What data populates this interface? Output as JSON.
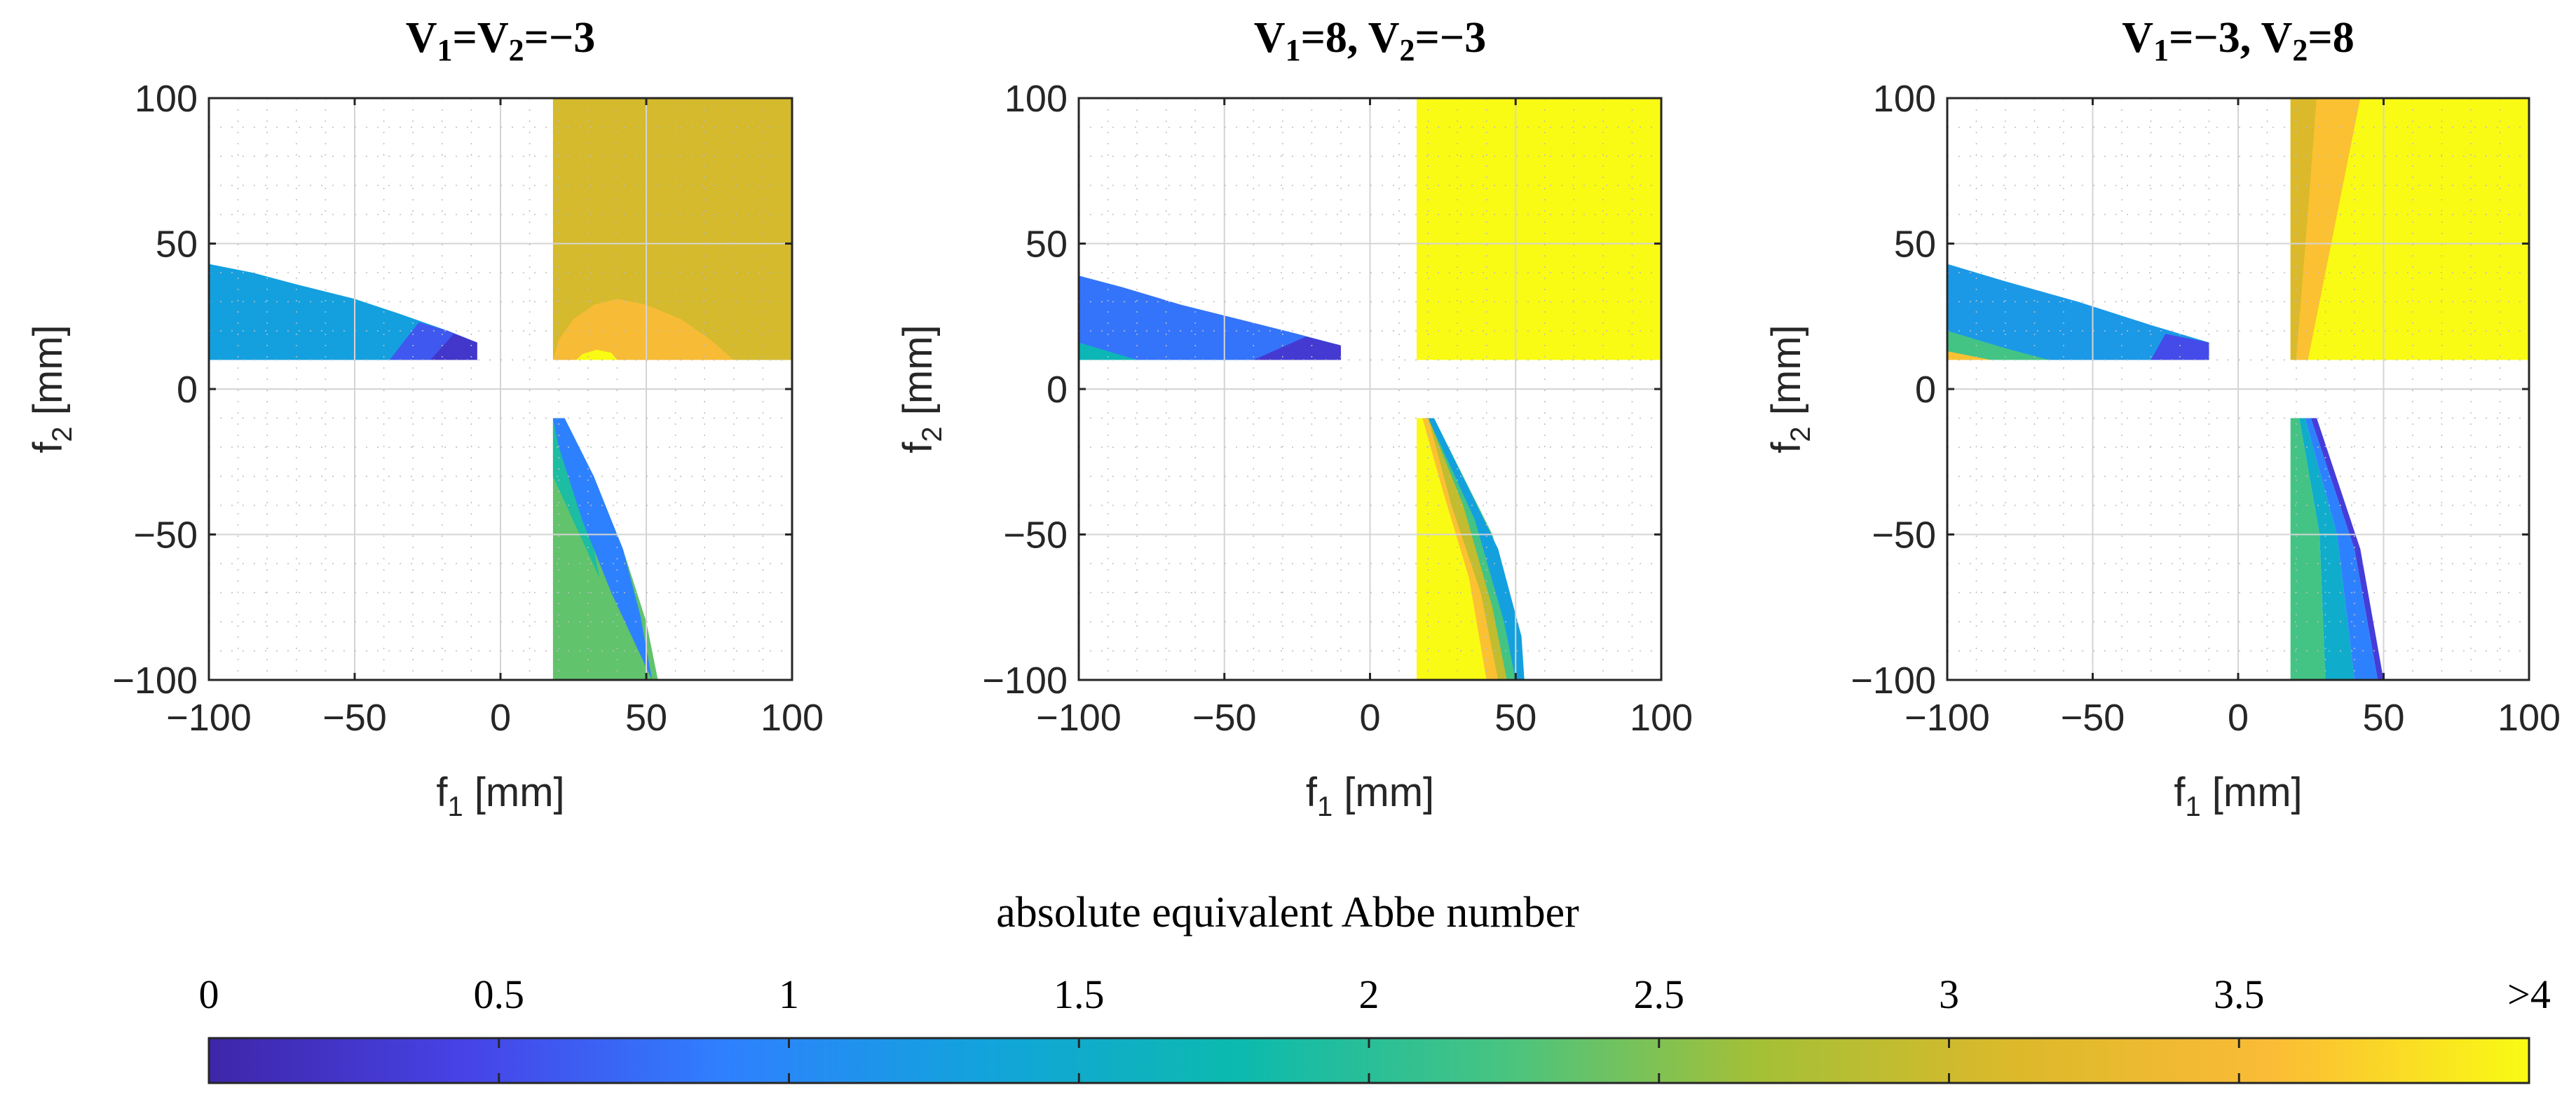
{
  "chart_data": {
    "type": "heatmap",
    "panels": [
      {
        "title_parts": [
          {
            "text": "V",
            "sub": false
          },
          {
            "text": "1",
            "sub": true
          },
          {
            "text": "=V",
            "sub": false
          },
          {
            "text": "2",
            "sub": true
          },
          {
            "text": "=−3",
            "sub": false
          }
        ],
        "regions": [
          {
            "value": 3.05,
            "points": [
              [
                18,
                10
              ],
              [
                100,
                10
              ],
              [
                100,
                100
              ],
              [
                18,
                100
              ]
            ]
          },
          {
            "value": 3.5,
            "points": [
              [
                18,
                10
              ],
              [
                80,
                10
              ],
              [
                72,
                17
              ],
              [
                62,
                24
              ],
              [
                50,
                29
              ],
              [
                40,
                31
              ],
              [
                32,
                29
              ],
              [
                25,
                24
              ],
              [
                20,
                17
              ]
            ]
          },
          {
            "value": 4.0,
            "points": [
              [
                26,
                10
              ],
              [
                40,
                10
              ],
              [
                38,
                12.5
              ],
              [
                33,
                13.5
              ],
              [
                28,
                12
              ]
            ]
          },
          {
            "value": 1.3,
            "points": [
              [
                -100,
                10
              ],
              [
                -8,
                10
              ],
              [
                -8,
                16
              ],
              [
                -18,
                20
              ],
              [
                -35,
                26
              ],
              [
                -50,
                31
              ],
              [
                -70,
                36
              ],
              [
                -85,
                40
              ],
              [
                -100,
                43
              ]
            ]
          },
          {
            "value": 0.6,
            "points": [
              [
                -38,
                10
              ],
              [
                -8,
                10
              ],
              [
                -8,
                16
              ],
              [
                -18,
                20
              ],
              [
                -28,
                23
              ]
            ]
          },
          {
            "value": 0.25,
            "points": [
              [
                -24,
                10
              ],
              [
                -8,
                10
              ],
              [
                -8,
                16
              ],
              [
                -16,
                19
              ]
            ]
          },
          {
            "value": 2.35,
            "points": [
              [
                18,
                -10
              ],
              [
                22,
                -10
              ],
              [
                32,
                -30
              ],
              [
                42,
                -55
              ],
              [
                50,
                -80
              ],
              [
                54,
                -100
              ],
              [
                18,
                -100
              ]
            ]
          },
          {
            "value": 1.9,
            "points": [
              [
                18,
                -10
              ],
              [
                22,
                -10
              ],
              [
                28,
                -35
              ],
              [
                32,
                -55
              ],
              [
                34,
                -65
              ],
              [
                18,
                -30
              ]
            ]
          },
          {
            "value": 0.9,
            "points": [
              [
                18,
                -10
              ],
              [
                22,
                -10
              ],
              [
                32,
                -30
              ],
              [
                42,
                -55
              ],
              [
                48,
                -78
              ],
              [
                52,
                -100
              ],
              [
                38,
                -70
              ],
              [
                28,
                -45
              ],
              [
                20,
                -20
              ]
            ]
          }
        ]
      },
      {
        "title_parts": [
          {
            "text": "V",
            "sub": false
          },
          {
            "text": "1",
            "sub": true
          },
          {
            "text": "=8, V",
            "sub": false
          },
          {
            "text": "2",
            "sub": true
          },
          {
            "text": "=−3",
            "sub": false
          }
        ],
        "regions": [
          {
            "value": 4.0,
            "points": [
              [
                16,
                10
              ],
              [
                100,
                10
              ],
              [
                100,
                100
              ],
              [
                16,
                100
              ]
            ]
          },
          {
            "value": 0.8,
            "points": [
              [
                -100,
                10
              ],
              [
                -10,
                10
              ],
              [
                -10,
                15
              ],
              [
                -25,
                19
              ],
              [
                -45,
                24
              ],
              [
                -65,
                29
              ],
              [
                -85,
                35
              ],
              [
                -100,
                39
              ]
            ]
          },
          {
            "value": 0.3,
            "points": [
              [
                -40,
                10
              ],
              [
                -10,
                10
              ],
              [
                -10,
                15
              ],
              [
                -22,
                18
              ]
            ]
          },
          {
            "value": 1.7,
            "points": [
              [
                -100,
                10
              ],
              [
                -80,
                10
              ],
              [
                -100,
                16
              ]
            ]
          },
          {
            "value": 4.0,
            "points": [
              [
                16,
                -10
              ],
              [
                18,
                -10
              ],
              [
                35,
                -50
              ],
              [
                44,
                -80
              ],
              [
                46,
                -100
              ],
              [
                16,
                -100
              ]
            ]
          },
          {
            "value": 3.6,
            "points": [
              [
                18,
                -10
              ],
              [
                22,
                -10
              ],
              [
                38,
                -50
              ],
              [
                46,
                -80
              ],
              [
                48,
                -100
              ],
              [
                40,
                -100
              ],
              [
                34,
                -65
              ],
              [
                25,
                -35
              ]
            ]
          },
          {
            "value": 2.9,
            "points": [
              [
                20,
                -10
              ],
              [
                22,
                -10
              ],
              [
                40,
                -50
              ],
              [
                48,
                -80
              ],
              [
                50,
                -100
              ],
              [
                44,
                -100
              ],
              [
                38,
                -70
              ],
              [
                28,
                -40
              ]
            ]
          },
          {
            "value": 2.2,
            "points": [
              [
                20,
                -10
              ],
              [
                22,
                -10
              ],
              [
                42,
                -50
              ],
              [
                50,
                -80
              ],
              [
                52,
                -100
              ],
              [
                47,
                -100
              ],
              [
                42,
                -75
              ],
              [
                32,
                -40
              ]
            ]
          },
          {
            "value": 1.3,
            "points": [
              [
                20,
                -10
              ],
              [
                22,
                -10
              ],
              [
                44,
                -55
              ],
              [
                52,
                -85
              ],
              [
                53,
                -100
              ],
              [
                50,
                -100
              ],
              [
                46,
                -80
              ],
              [
                36,
                -45
              ]
            ]
          }
        ]
      },
      {
        "title_parts": [
          {
            "text": "V",
            "sub": false
          },
          {
            "text": "1",
            "sub": true
          },
          {
            "text": "=−3, V",
            "sub": false
          },
          {
            "text": "2",
            "sub": true
          },
          {
            "text": "=8",
            "sub": false
          }
        ],
        "regions": [
          {
            "value": 4.0,
            "points": [
              [
                18,
                10
              ],
              [
                100,
                10
              ],
              [
                100,
                100
              ],
              [
                18,
                100
              ]
            ]
          },
          {
            "value": 3.1,
            "points": [
              [
                18,
                10
              ],
              [
                20,
                10
              ],
              [
                24,
                60
              ],
              [
                27,
                100
              ],
              [
                18,
                100
              ]
            ]
          },
          {
            "value": 3.6,
            "points": [
              [
                20,
                10
              ],
              [
                24,
                10
              ],
              [
                34,
                60
              ],
              [
                42,
                100
              ],
              [
                27,
                100
              ],
              [
                24,
                60
              ]
            ]
          },
          {
            "value": 1.2,
            "points": [
              [
                -100,
                10
              ],
              [
                -10,
                10
              ],
              [
                -10,
                16
              ],
              [
                -30,
                22
              ],
              [
                -55,
                30
              ],
              [
                -80,
                37
              ],
              [
                -100,
                43
              ]
            ]
          },
          {
            "value": 0.5,
            "points": [
              [
                -30,
                10
              ],
              [
                -10,
                10
              ],
              [
                -10,
                16
              ],
              [
                -25,
                19
              ]
            ]
          },
          {
            "value": 2.2,
            "points": [
              [
                -100,
                10
              ],
              [
                -65,
                10
              ],
              [
                -80,
                14
              ],
              [
                -100,
                20
              ]
            ]
          },
          {
            "value": 3.6,
            "points": [
              [
                -100,
                10
              ],
              [
                -85,
                10
              ],
              [
                -100,
                13
              ]
            ]
          },
          {
            "value": 2.2,
            "points": [
              [
                18,
                -10
              ],
              [
                21,
                -10
              ],
              [
                28,
                -50
              ],
              [
                30,
                -100
              ],
              [
                18,
                -100
              ]
            ]
          },
          {
            "value": 1.5,
            "points": [
              [
                21,
                -10
              ],
              [
                23,
                -10
              ],
              [
                34,
                -50
              ],
              [
                40,
                -100
              ],
              [
                30,
                -100
              ],
              [
                28,
                -50
              ]
            ]
          },
          {
            "value": 0.9,
            "points": [
              [
                23,
                -10
              ],
              [
                25,
                -10
              ],
              [
                40,
                -55
              ],
              [
                48,
                -100
              ],
              [
                40,
                -100
              ],
              [
                34,
                -50
              ]
            ]
          },
          {
            "value": 0.35,
            "points": [
              [
                25,
                -10
              ],
              [
                27,
                -10
              ],
              [
                42,
                -55
              ],
              [
                50,
                -100
              ],
              [
                48,
                -100
              ],
              [
                40,
                -55
              ]
            ]
          }
        ]
      }
    ],
    "xlabel": {
      "base": "f",
      "sub": "1",
      "unit": " [mm]"
    },
    "ylabel": {
      "base": "f",
      "sub": "2",
      "unit": " [mm]"
    },
    "xlim": [
      -100,
      100
    ],
    "ylim": [
      -100,
      100
    ],
    "xticks": [
      -100,
      -50,
      0,
      50,
      100
    ],
    "yticks": [
      -100,
      -50,
      0,
      50,
      100
    ],
    "xtick_labels": [
      "−100",
      "−50",
      "0",
      "50",
      "100"
    ],
    "ytick_labels": [
      "−100",
      "−50",
      "0",
      "50",
      "100"
    ],
    "grid": true,
    "colorbar": {
      "title": "absolute equivalent Abbe number",
      "range": [
        0,
        4
      ],
      "ticks": [
        0,
        0.5,
        1,
        1.5,
        2,
        2.5,
        3,
        3.5,
        4
      ],
      "tick_labels": [
        "0",
        "0.5",
        "1",
        "1.5",
        "2",
        "2.5",
        "3",
        "3.5",
        ">4"
      ],
      "location": "bottom",
      "colormap": [
        "#3e26a8",
        "#4743e6",
        "#2f80ff",
        "#12a3dc",
        "#0cbaae",
        "#46c482",
        "#a3c037",
        "#dcb92a",
        "#fbbb36",
        "#f9fb14"
      ]
    }
  }
}
